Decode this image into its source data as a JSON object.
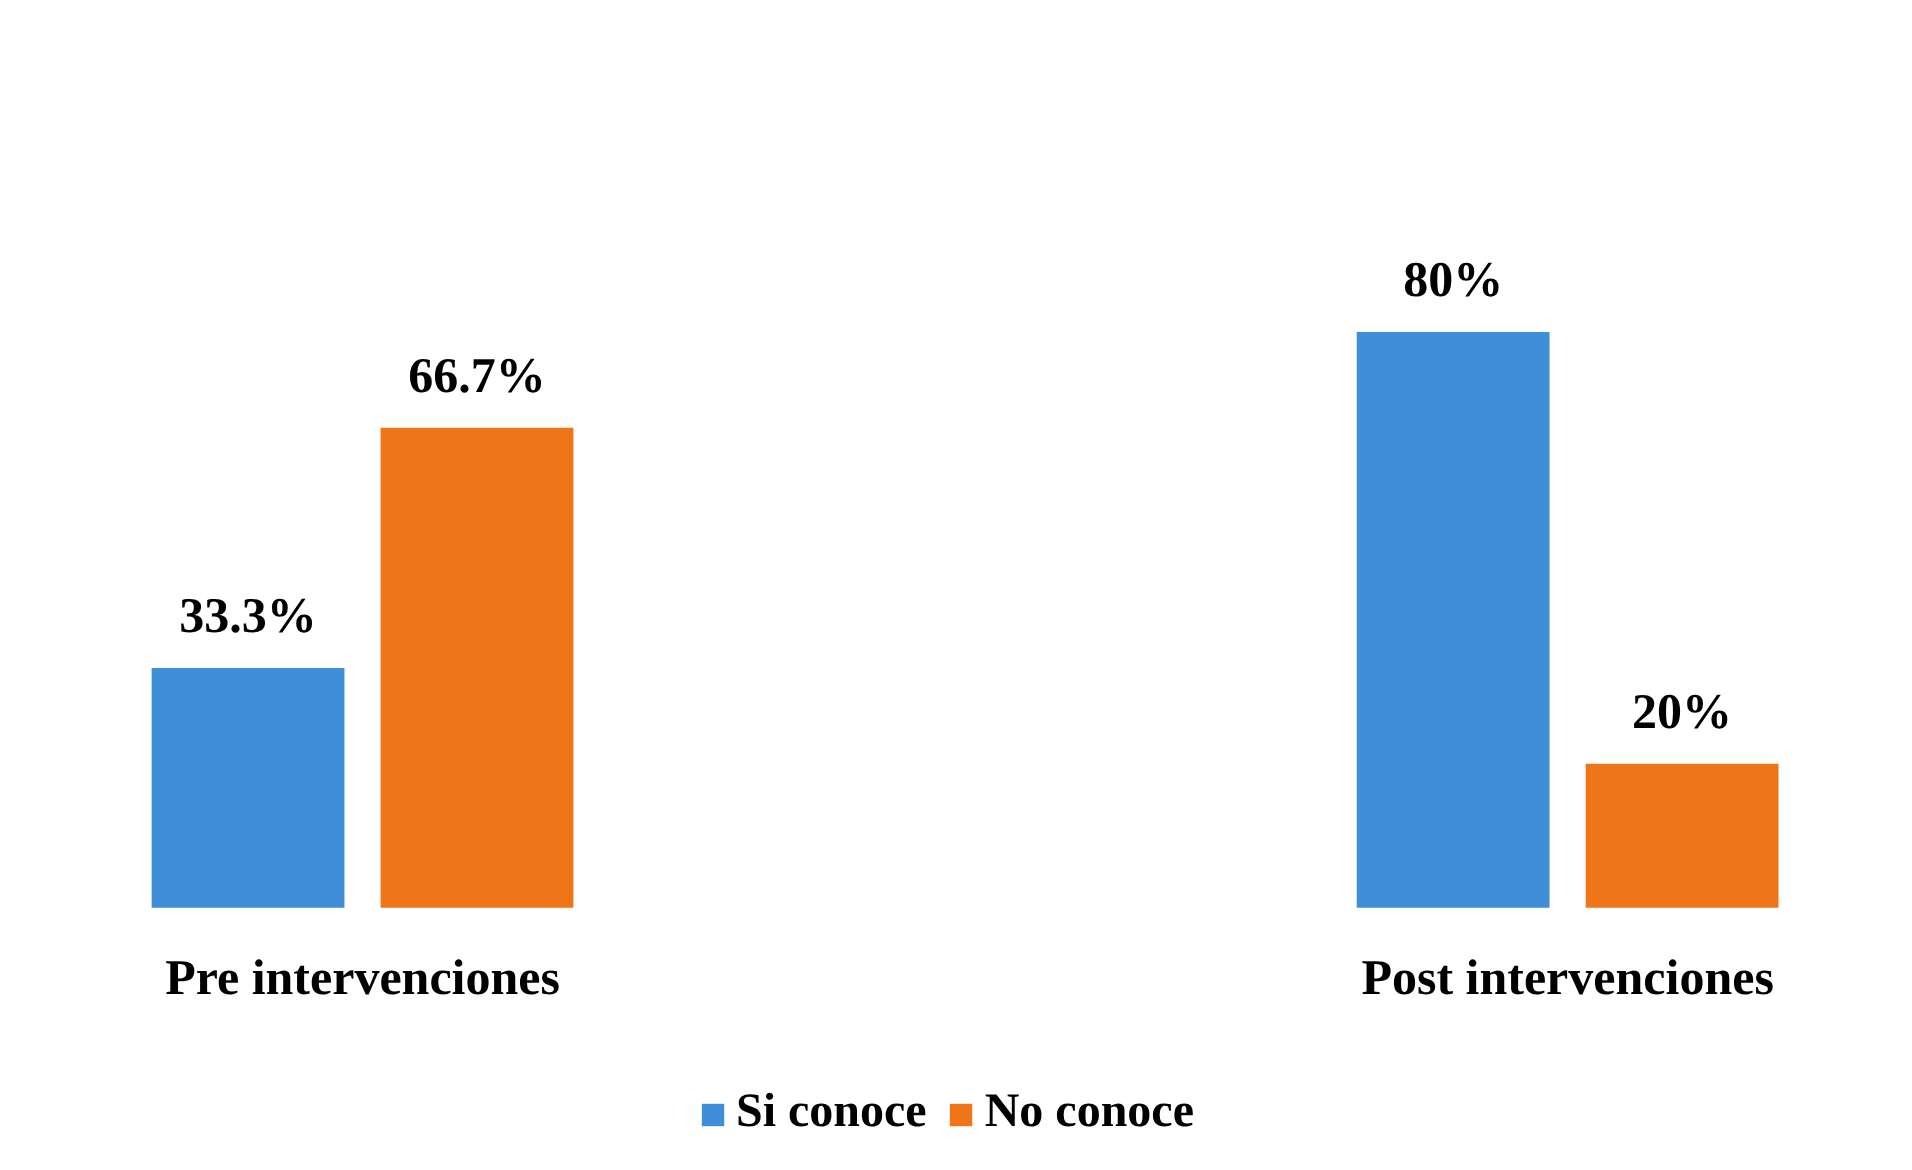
{
  "chart_data": {
    "type": "bar",
    "categories": [
      "Pre intervenciones",
      "Post intervenciones"
    ],
    "series": [
      {
        "name": "Si conoce",
        "color": "#3f8fd8",
        "values": [
          33.3,
          80
        ],
        "value_labels": [
          "33.3%",
          "80%"
        ]
      },
      {
        "name": "No conoce",
        "color": "#ee7619",
        "values": [
          66.7,
          20
        ],
        "value_labels": [
          "66.7%",
          "20%"
        ]
      }
    ],
    "legend": "bottom"
  }
}
